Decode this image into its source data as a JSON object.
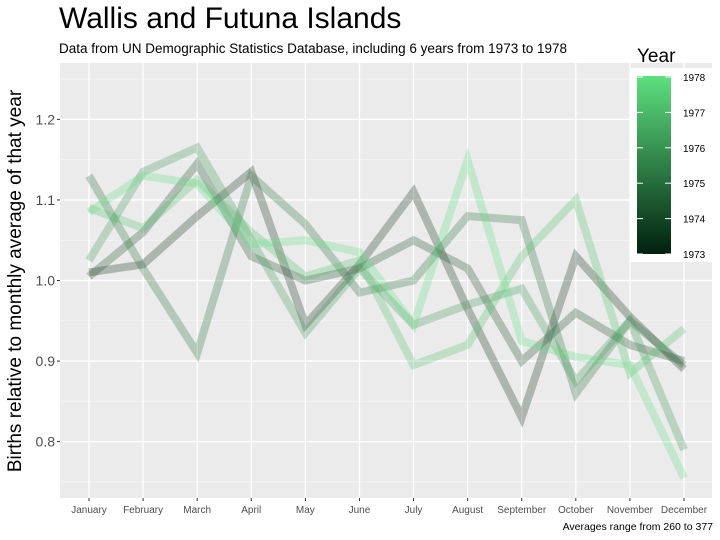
{
  "chart_data": {
    "type": "line",
    "title": "Wallis and Futuna Islands",
    "subtitle": "Data from UN Demographic Statistics Database, including 6 years from 1973 to 1978",
    "xlabel": "",
    "ylabel": "Births relative to monthly average of that year",
    "caption": "Averages range from 260 to 377",
    "categories": [
      "January",
      "February",
      "March",
      "April",
      "May",
      "June",
      "July",
      "August",
      "September",
      "October",
      "November",
      "December"
    ],
    "ylim": [
      0.73,
      1.27
    ],
    "yticks": [
      "0.8",
      "0.9",
      "1.0",
      "1.1",
      "1.2"
    ],
    "ytick_values": [
      0.8,
      0.9,
      1.0,
      1.1,
      1.2
    ],
    "grid": true,
    "legend": {
      "title": "Year",
      "placement": "right",
      "labels": [
        "1978",
        "1977",
        "1976",
        "1975",
        "1974",
        "1973"
      ],
      "low_color": "#00200e",
      "high_color": "#5ee07f"
    },
    "series": [
      {
        "year": 1973,
        "color": "#0d2a17",
        "values": [
          1.01,
          1.02,
          1.08,
          1.135,
          0.945,
          1.02,
          1.11,
          0.965,
          0.83,
          1.03,
          0.955,
          0.89
        ]
      },
      {
        "year": 1974,
        "color": "#1a4d29",
        "values": [
          1.005,
          1.06,
          1.145,
          1.03,
          1.0,
          1.015,
          1.05,
          1.015,
          0.9,
          0.96,
          0.92,
          0.9
        ]
      },
      {
        "year": 1975,
        "color": "#266e39",
        "values": [
          1.13,
          1.015,
          0.91,
          1.13,
          1.07,
          0.985,
          1.0,
          1.08,
          1.075,
          0.86,
          0.95,
          0.895
        ]
      },
      {
        "year": 1976,
        "color": "#389752",
        "values": [
          1.025,
          1.135,
          1.165,
          1.05,
          0.935,
          1.015,
          0.945,
          0.97,
          0.99,
          0.875,
          0.95,
          0.79
        ]
      },
      {
        "year": 1977,
        "color": "#4ac168",
        "values": [
          1.09,
          1.065,
          1.125,
          1.06,
          1.005,
          1.025,
          0.895,
          0.92,
          1.03,
          1.1,
          0.885,
          0.94
        ]
      },
      {
        "year": 1978,
        "color": "#5ee07f",
        "values": [
          1.085,
          1.13,
          1.12,
          1.045,
          1.05,
          1.035,
          0.945,
          1.15,
          0.925,
          0.905,
          0.895,
          0.755
        ]
      }
    ]
  }
}
